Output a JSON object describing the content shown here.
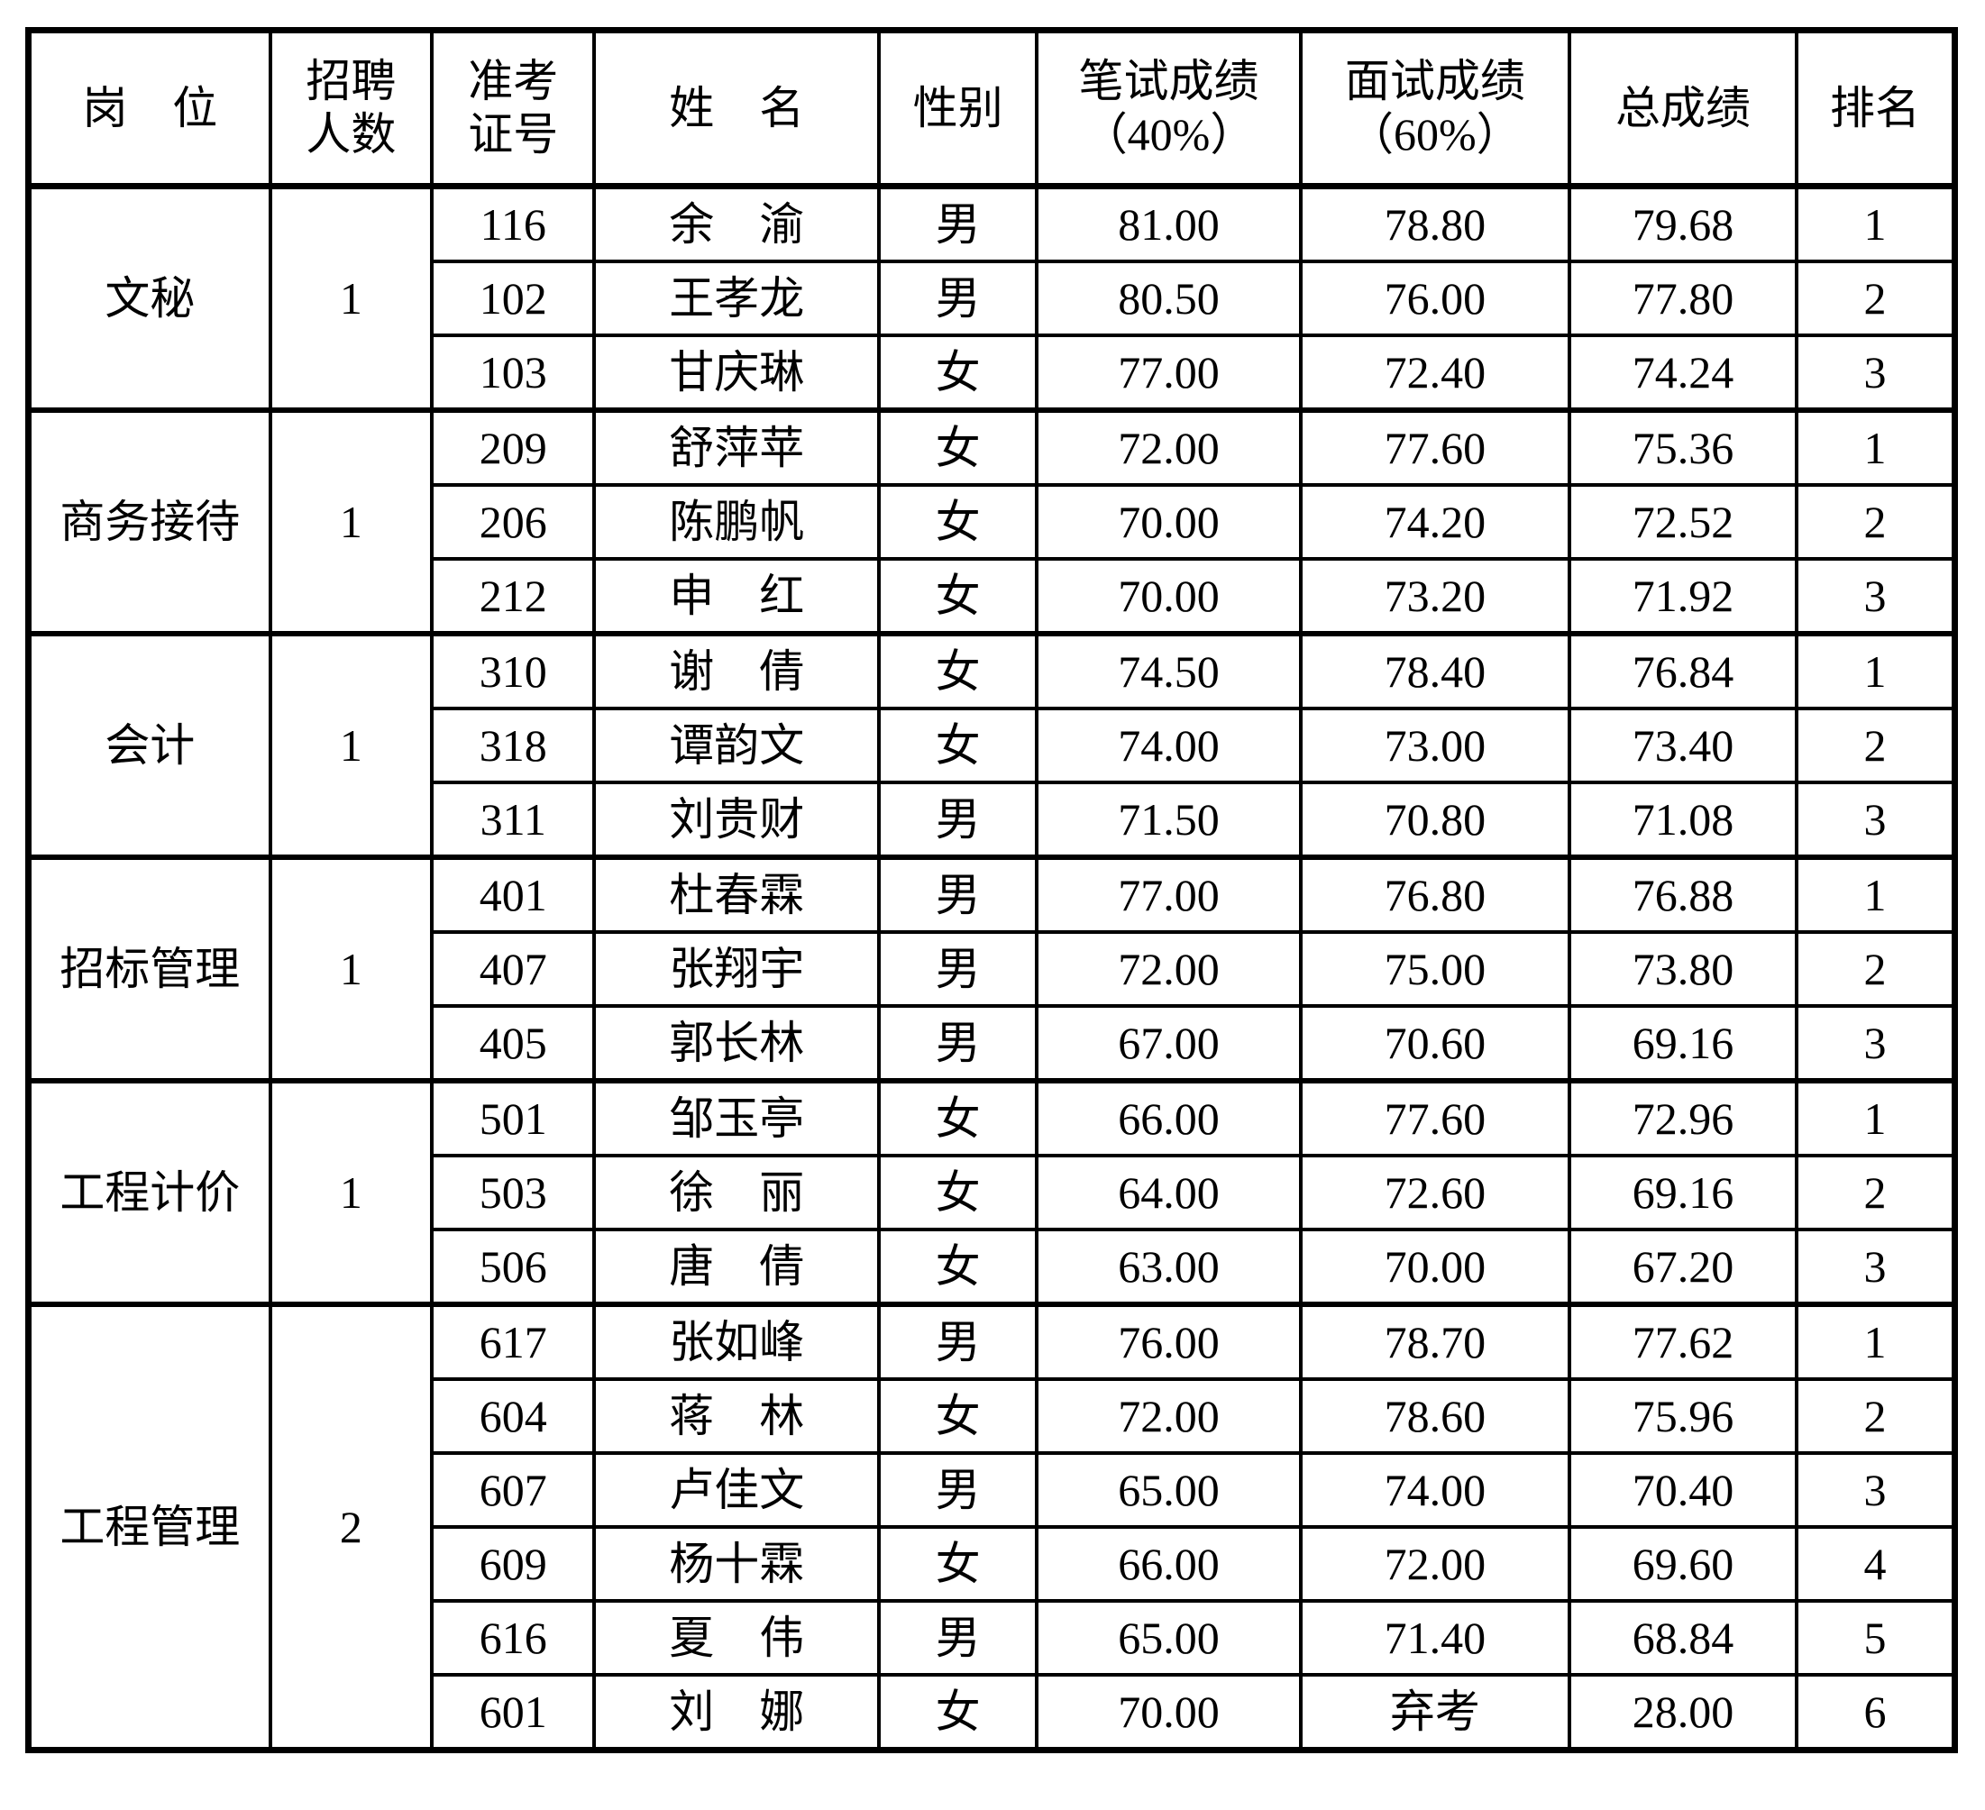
{
  "colors": {
    "border": "#000000",
    "text": "#000000",
    "background": "#ffffff"
  },
  "table": {
    "header": {
      "position": "岗　位",
      "recruit_line1": "招聘",
      "recruit_line2": "人数",
      "ticket_line1": "准考",
      "ticket_line2": "证号",
      "name": "姓　名",
      "gender": "性别",
      "written_line1": "笔试成绩",
      "written_line2": "（40%）",
      "interview_line1": "面试成绩",
      "interview_line2": "（60%）",
      "total": "总成绩",
      "rank": "排名"
    },
    "groups": [
      {
        "position": "文秘",
        "recruit_count": "1",
        "candidates": [
          {
            "id": "116",
            "name": "余　渝",
            "gender": "男",
            "written": "81.00",
            "interview": "78.80",
            "total": "79.68",
            "rank": "1"
          },
          {
            "id": "102",
            "name": "王孝龙",
            "gender": "男",
            "written": "80.50",
            "interview": "76.00",
            "total": "77.80",
            "rank": "2"
          },
          {
            "id": "103",
            "name": "甘庆琳",
            "gender": "女",
            "written": "77.00",
            "interview": "72.40",
            "total": "74.24",
            "rank": "3"
          }
        ]
      },
      {
        "position": "商务接待",
        "recruit_count": "1",
        "candidates": [
          {
            "id": "209",
            "name": "舒萍苹",
            "gender": "女",
            "written": "72.00",
            "interview": "77.60",
            "total": "75.36",
            "rank": "1"
          },
          {
            "id": "206",
            "name": "陈鹏帆",
            "gender": "女",
            "written": "70.00",
            "interview": "74.20",
            "total": "72.52",
            "rank": "2"
          },
          {
            "id": "212",
            "name": "申　红",
            "gender": "女",
            "written": "70.00",
            "interview": "73.20",
            "total": "71.92",
            "rank": "3"
          }
        ]
      },
      {
        "position": "会计",
        "recruit_count": "1",
        "candidates": [
          {
            "id": "310",
            "name": "谢　倩",
            "gender": "女",
            "written": "74.50",
            "interview": "78.40",
            "total": "76.84",
            "rank": "1"
          },
          {
            "id": "318",
            "name": "谭韵文",
            "gender": "女",
            "written": "74.00",
            "interview": "73.00",
            "total": "73.40",
            "rank": "2"
          },
          {
            "id": "311",
            "name": "刘贵财",
            "gender": "男",
            "written": "71.50",
            "interview": "70.80",
            "total": "71.08",
            "rank": "3"
          }
        ]
      },
      {
        "position": "招标管理",
        "recruit_count": "1",
        "candidates": [
          {
            "id": "401",
            "name": "杜春霖",
            "gender": "男",
            "written": "77.00",
            "interview": "76.80",
            "total": "76.88",
            "rank": "1"
          },
          {
            "id": "407",
            "name": "张翔宇",
            "gender": "男",
            "written": "72.00",
            "interview": "75.00",
            "total": "73.80",
            "rank": "2"
          },
          {
            "id": "405",
            "name": "郭长林",
            "gender": "男",
            "written": "67.00",
            "interview": "70.60",
            "total": "69.16",
            "rank": "3"
          }
        ]
      },
      {
        "position": "工程计价",
        "recruit_count": "1",
        "candidates": [
          {
            "id": "501",
            "name": "邹玉亭",
            "gender": "女",
            "written": "66.00",
            "interview": "77.60",
            "total": "72.96",
            "rank": "1"
          },
          {
            "id": "503",
            "name": "徐　丽",
            "gender": "女",
            "written": "64.00",
            "interview": "72.60",
            "total": "69.16",
            "rank": "2"
          },
          {
            "id": "506",
            "name": "唐　倩",
            "gender": "女",
            "written": "63.00",
            "interview": "70.00",
            "total": "67.20",
            "rank": "3"
          }
        ]
      },
      {
        "position": "工程管理",
        "recruit_count": "2",
        "candidates": [
          {
            "id": "617",
            "name": "张如峰",
            "gender": "男",
            "written": "76.00",
            "interview": "78.70",
            "total": "77.62",
            "rank": "1"
          },
          {
            "id": "604",
            "name": "蒋　林",
            "gender": "女",
            "written": "72.00",
            "interview": "78.60",
            "total": "75.96",
            "rank": "2"
          },
          {
            "id": "607",
            "name": "卢佳文",
            "gender": "男",
            "written": "65.00",
            "interview": "74.00",
            "total": "70.40",
            "rank": "3"
          },
          {
            "id": "609",
            "name": "杨十霖",
            "gender": "女",
            "written": "66.00",
            "interview": "72.00",
            "total": "69.60",
            "rank": "4"
          },
          {
            "id": "616",
            "name": "夏　伟",
            "gender": "男",
            "written": "65.00",
            "interview": "71.40",
            "total": "68.84",
            "rank": "5"
          },
          {
            "id": "601",
            "name": "刘　娜",
            "gender": "女",
            "written": "70.00",
            "interview": "弃考",
            "total": "28.00",
            "rank": "6"
          }
        ]
      }
    ]
  }
}
